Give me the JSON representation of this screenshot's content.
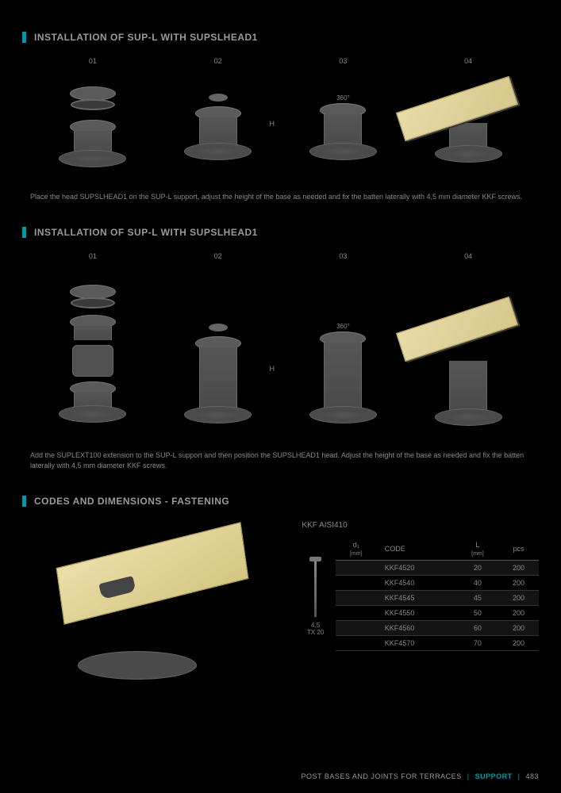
{
  "colors": {
    "accent": "#0099a8",
    "bg": "#000000",
    "text": "#9a9a9a",
    "muted": "#888888"
  },
  "section1": {
    "title": "INSTALLATION OF SUP-L WITH SUPSLHEAD1",
    "steps": [
      "01",
      "02",
      "03",
      "04"
    ],
    "degree_label": "360°",
    "h_label": "H",
    "caption": "Place the head SUPSLHEAD1 on the SUP-L support, adjust the height of the base as needed and fix the batten laterally with 4,5 mm diameter KKF screws."
  },
  "section2": {
    "title": "INSTALLATION OF SUP-L WITH SUPSLHEAD1",
    "steps": [
      "01",
      "02",
      "03",
      "04"
    ],
    "degree_label": "360°",
    "h_label": "H",
    "caption": "Add the SUPLEXT100 extension to the SUP-L support and then position the SUPSLHEAD1 head. Adjust the height of the base as needed and fix the batten laterally with 4,5 mm diameter KKF screws."
  },
  "section3": {
    "title": "CODES AND DIMENSIONS - FASTENING",
    "product": "KKF AISI410",
    "screw_spec": "4,5\nTX 20",
    "table": {
      "columns": [
        {
          "label": "d₁",
          "unit": "[mm]"
        },
        {
          "label": "CODE",
          "unit": ""
        },
        {
          "label": "L",
          "unit": "[mm]"
        },
        {
          "label": "pcs",
          "unit": ""
        }
      ],
      "rows": [
        [
          "",
          "KKF4520",
          "20",
          "200"
        ],
        [
          "",
          "KKF4540",
          "40",
          "200"
        ],
        [
          "",
          "KKF4545",
          "45",
          "200"
        ],
        [
          "",
          "KKF4550",
          "50",
          "200"
        ],
        [
          "",
          "KKF4560",
          "60",
          "200"
        ],
        [
          "",
          "KKF4570",
          "70",
          "200"
        ]
      ]
    }
  },
  "footer": {
    "category": "POST BASES AND JOINTS FOR TERRACES",
    "section": "SUPPORT",
    "page": "483"
  }
}
